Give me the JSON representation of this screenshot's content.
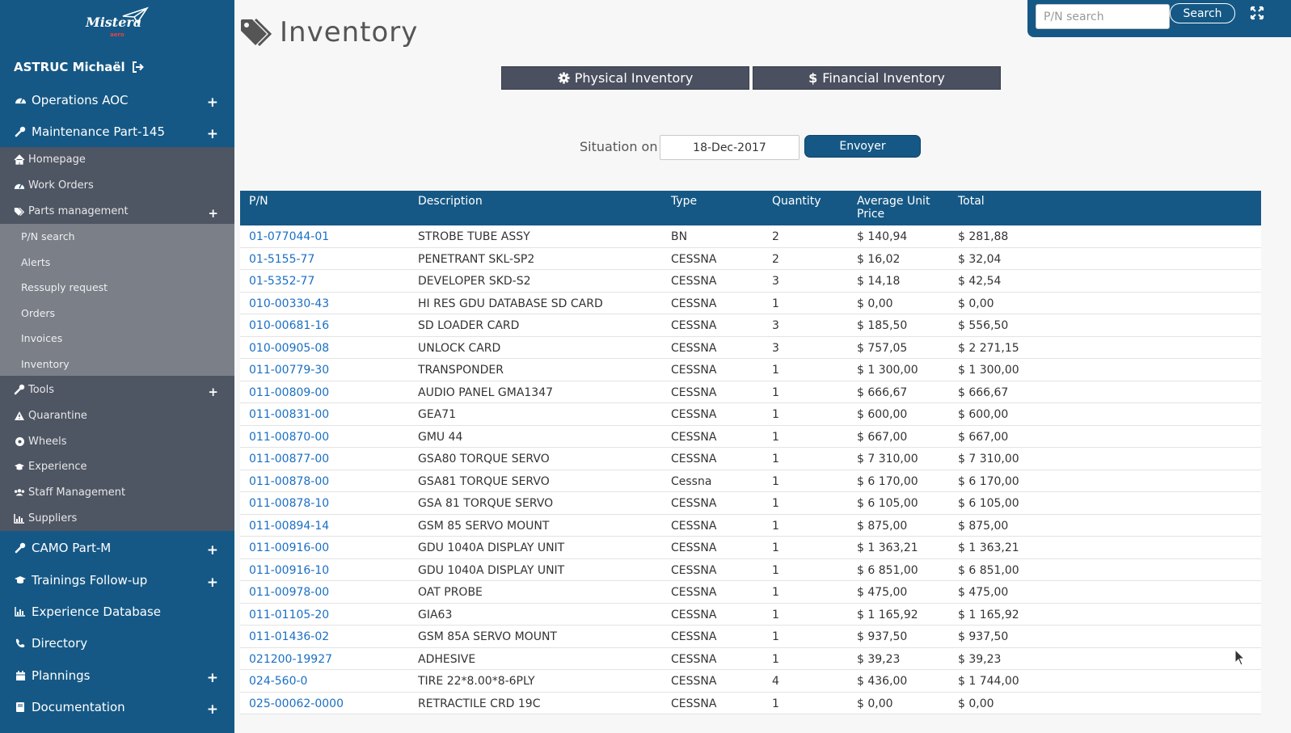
{
  "sidebar": {
    "logo_text": "Mistera",
    "logo_sub": "aero",
    "user_name": "ASTRUC Michaël",
    "top_items": [
      {
        "label": "Operations AOC",
        "icon": "dashboard-icon",
        "expandable": true
      },
      {
        "label": "Maintenance Part-145",
        "icon": "wrench-icon",
        "expandable": true
      }
    ],
    "maint_items": [
      {
        "label": "Homepage",
        "icon": "home-icon",
        "expandable": false
      },
      {
        "label": "Work Orders",
        "icon": "dashboard-icon",
        "expandable": false
      },
      {
        "label": "Parts management",
        "icon": "tags-icon",
        "expandable": true
      }
    ],
    "parts_items": [
      "P/N search",
      "Alerts",
      "Ressuply request",
      "Orders",
      "Invoices",
      "Inventory"
    ],
    "maint_items_2": [
      {
        "label": "Tools",
        "icon": "wrench-icon",
        "expandable": true
      },
      {
        "label": "Quarantine",
        "icon": "warning-icon",
        "expandable": false
      },
      {
        "label": "Wheels",
        "icon": "circle-icon",
        "expandable": false
      },
      {
        "label": "Experience",
        "icon": "graduation-cap-icon",
        "expandable": false
      },
      {
        "label": "Staff Management",
        "icon": "users-icon",
        "expandable": false
      },
      {
        "label": "Suppliers",
        "icon": "chart-icon",
        "expandable": false
      }
    ],
    "bottom_items": [
      {
        "label": "CAMO Part-M",
        "icon": "wrench-icon",
        "expandable": true
      },
      {
        "label": "Trainings Follow-up",
        "icon": "graduation-cap-icon",
        "expandable": true
      },
      {
        "label": "Experience Database",
        "icon": "chart-icon",
        "expandable": false
      },
      {
        "label": "Directory",
        "icon": "phone-icon",
        "expandable": false
      },
      {
        "label": "Plannings",
        "icon": "calendar-icon",
        "expandable": true
      },
      {
        "label": "Documentation",
        "icon": "book-icon",
        "expandable": true
      }
    ],
    "plus_symbol": "+"
  },
  "header": {
    "title": "Inventory",
    "search_placeholder": "P/N search",
    "search_button": "Search"
  },
  "actions": {
    "physical": "Physical Inventory",
    "financial": "Financial Inventory"
  },
  "situation": {
    "label": "Situation on",
    "date": "18-Dec-2017",
    "submit": "Envoyer"
  },
  "table": {
    "columns": [
      "P/N",
      "Description",
      "Type",
      "Quantity",
      "Average Unit Price",
      "Total"
    ],
    "rows": [
      [
        "01-077044-01",
        "STROBE TUBE ASSY",
        "BN",
        "2",
        "$ 140,94",
        "$ 281,88"
      ],
      [
        "01-5155-77",
        "PENETRANT SKL-SP2",
        "CESSNA",
        "2",
        "$ 16,02",
        "$ 32,04"
      ],
      [
        "01-5352-77",
        "DEVELOPER SKD-S2",
        "CESSNA",
        "3",
        "$ 14,18",
        "$ 42,54"
      ],
      [
        "010-00330-43",
        "HI RES GDU DATABASE SD CARD",
        "CESSNA",
        "1",
        "$ 0,00",
        "$ 0,00"
      ],
      [
        "010-00681-16",
        "SD LOADER CARD",
        "CESSNA",
        "3",
        "$ 185,50",
        "$ 556,50"
      ],
      [
        "010-00905-08",
        "UNLOCK CARD",
        "CESSNA",
        "3",
        "$ 757,05",
        "$ 2 271,15"
      ],
      [
        "011-00779-30",
        "TRANSPONDER",
        "CESSNA",
        "1",
        "$ 1 300,00",
        "$ 1 300,00"
      ],
      [
        "011-00809-00",
        "AUDIO PANEL GMA1347",
        "CESSNA",
        "1",
        "$ 666,67",
        "$ 666,67"
      ],
      [
        "011-00831-00",
        "GEA71",
        "CESSNA",
        "1",
        "$ 600,00",
        "$ 600,00"
      ],
      [
        "011-00870-00",
        "GMU 44",
        "CESSNA",
        "1",
        "$ 667,00",
        "$ 667,00"
      ],
      [
        "011-00877-00",
        "GSA80 TORQUE SERVO",
        "CESSNA",
        "1",
        "$ 7 310,00",
        "$ 7 310,00"
      ],
      [
        "011-00878-00",
        "GSA81 TORQUE SERVO",
        "Cessna",
        "1",
        "$ 6 170,00",
        "$ 6 170,00"
      ],
      [
        "011-00878-10",
        "GSA 81 TORQUE SERVO",
        "CESSNA",
        "1",
        "$ 6 105,00",
        "$ 6 105,00"
      ],
      [
        "011-00894-14",
        "GSM 85 SERVO MOUNT",
        "CESSNA",
        "1",
        "$ 875,00",
        "$ 875,00"
      ],
      [
        "011-00916-00",
        "GDU 1040A DISPLAY UNIT",
        "CESSNA",
        "1",
        "$ 1 363,21",
        "$ 1 363,21"
      ],
      [
        "011-00916-10",
        "GDU 1040A DISPLAY UNIT",
        "CESSNA",
        "1",
        "$ 6 851,00",
        "$ 6 851,00"
      ],
      [
        "011-00978-00",
        "OAT PROBE",
        "CESSNA",
        "1",
        "$ 475,00",
        "$ 475,00"
      ],
      [
        "011-01105-20",
        "GIA63",
        "CESSNA",
        "1",
        "$ 1 165,92",
        "$ 1 165,92"
      ],
      [
        "011-01436-02",
        "GSM 85A SERVO MOUNT",
        "CESSNA",
        "1",
        "$ 937,50",
        "$ 937,50"
      ],
      [
        "021200-19927",
        "ADHESIVE",
        "CESSNA",
        "1",
        "$ 39,23",
        "$ 39,23"
      ],
      [
        "024-560-0",
        "TIRE 22*8.00*8-6PLY",
        "CESSNA",
        "4",
        "$ 436,00",
        "$ 1 744,00"
      ],
      [
        "025-00062-0000",
        "RETRACTILE CRD 19C",
        "CESSNA",
        "1",
        "$ 0,00",
        "$ 0,00"
      ]
    ]
  },
  "colors": {
    "primary": "#155885",
    "sidebar_sub": "#4e5563",
    "sidebar_sub2": "#7a7f88",
    "button_dark": "#4b5060",
    "link": "#1a6fc4"
  }
}
